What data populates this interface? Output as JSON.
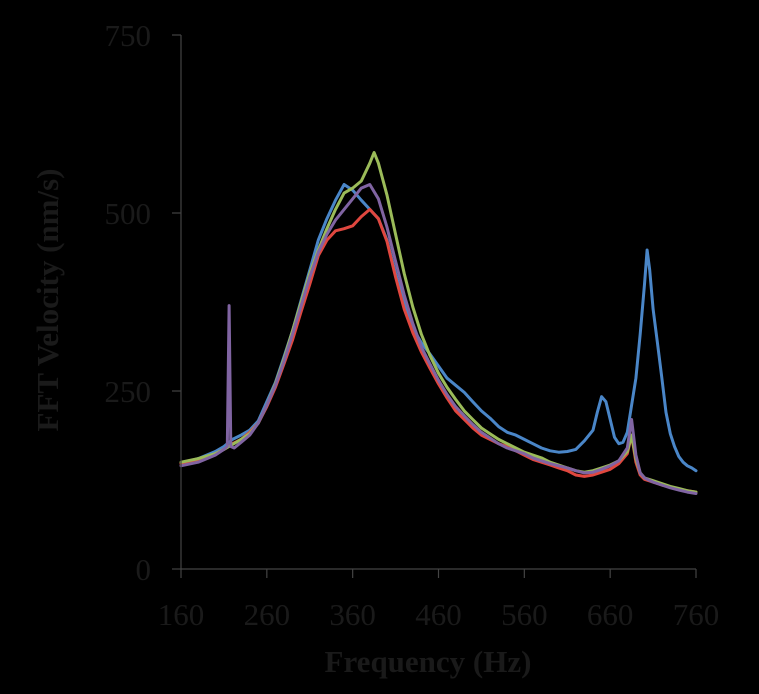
{
  "chart_data": {
    "type": "line",
    "title": "",
    "xlabel": "Frequency (Hz)",
    "ylabel": "FFT Velocity (nm/s)",
    "xlim": [
      160,
      760
    ],
    "ylim": [
      0,
      750
    ],
    "xticks": [
      160,
      260,
      360,
      460,
      560,
      660,
      760
    ],
    "yticks": [
      0,
      250,
      500,
      750
    ],
    "xtick_labels": [
      "160",
      "260",
      "360",
      "460",
      "560",
      "660",
      "760"
    ],
    "ytick_labels": [
      "0",
      "250",
      "500",
      "750"
    ],
    "grid": false,
    "legend": "none",
    "series": [
      {
        "color": "#4a86c8",
        "points": [
          [
            160,
            148
          ],
          [
            180,
            155
          ],
          [
            200,
            165
          ],
          [
            210,
            172
          ],
          [
            220,
            182
          ],
          [
            230,
            188
          ],
          [
            240,
            195
          ],
          [
            250,
            208
          ],
          [
            260,
            235
          ],
          [
            270,
            262
          ],
          [
            280,
            298
          ],
          [
            290,
            335
          ],
          [
            300,
            378
          ],
          [
            310,
            420
          ],
          [
            320,
            462
          ],
          [
            330,
            492
          ],
          [
            340,
            518
          ],
          [
            350,
            540
          ],
          [
            360,
            532
          ],
          [
            370,
            518
          ],
          [
            380,
            505
          ],
          [
            390,
            492
          ],
          [
            400,
            462
          ],
          [
            410,
            415
          ],
          [
            420,
            372
          ],
          [
            430,
            338
          ],
          [
            440,
            318
          ],
          [
            450,
            302
          ],
          [
            460,
            285
          ],
          [
            470,
            268
          ],
          [
            480,
            258
          ],
          [
            490,
            248
          ],
          [
            500,
            235
          ],
          [
            510,
            222
          ],
          [
            520,
            212
          ],
          [
            530,
            200
          ],
          [
            540,
            192
          ],
          [
            550,
            188
          ],
          [
            560,
            182
          ],
          [
            570,
            176
          ],
          [
            580,
            170
          ],
          [
            590,
            166
          ],
          [
            600,
            164
          ],
          [
            610,
            165
          ],
          [
            620,
            168
          ],
          [
            630,
            180
          ],
          [
            640,
            195
          ],
          [
            645,
            220
          ],
          [
            650,
            242
          ],
          [
            655,
            235
          ],
          [
            660,
            210
          ],
          [
            665,
            185
          ],
          [
            670,
            176
          ],
          [
            675,
            178
          ],
          [
            680,
            192
          ],
          [
            685,
            230
          ],
          [
            690,
            268
          ],
          [
            695,
            330
          ],
          [
            700,
            400
          ],
          [
            703,
            448
          ],
          [
            706,
            420
          ],
          [
            710,
            365
          ],
          [
            715,
            318
          ],
          [
            720,
            270
          ],
          [
            725,
            220
          ],
          [
            730,
            190
          ],
          [
            735,
            172
          ],
          [
            740,
            158
          ],
          [
            745,
            150
          ],
          [
            750,
            145
          ],
          [
            755,
            142
          ],
          [
            760,
            138
          ]
        ]
      },
      {
        "color": "#e0473f",
        "points": [
          [
            160,
            148
          ],
          [
            180,
            152
          ],
          [
            200,
            162
          ],
          [
            210,
            168
          ],
          [
            220,
            176
          ],
          [
            230,
            182
          ],
          [
            240,
            192
          ],
          [
            250,
            205
          ],
          [
            260,
            228
          ],
          [
            270,
            255
          ],
          [
            280,
            288
          ],
          [
            290,
            322
          ],
          [
            300,
            362
          ],
          [
            310,
            400
          ],
          [
            320,
            440
          ],
          [
            330,
            462
          ],
          [
            340,
            475
          ],
          [
            350,
            478
          ],
          [
            360,
            482
          ],
          [
            370,
            495
          ],
          [
            380,
            505
          ],
          [
            390,
            492
          ],
          [
            400,
            460
          ],
          [
            410,
            410
          ],
          [
            420,
            365
          ],
          [
            430,
            332
          ],
          [
            440,
            305
          ],
          [
            450,
            282
          ],
          [
            460,
            260
          ],
          [
            470,
            240
          ],
          [
            480,
            222
          ],
          [
            490,
            210
          ],
          [
            500,
            198
          ],
          [
            510,
            188
          ],
          [
            520,
            182
          ],
          [
            530,
            176
          ],
          [
            540,
            172
          ],
          [
            550,
            166
          ],
          [
            560,
            160
          ],
          [
            570,
            154
          ],
          [
            580,
            150
          ],
          [
            590,
            146
          ],
          [
            600,
            142
          ],
          [
            610,
            138
          ],
          [
            620,
            132
          ],
          [
            630,
            130
          ],
          [
            640,
            132
          ],
          [
            650,
            136
          ],
          [
            660,
            140
          ],
          [
            670,
            148
          ],
          [
            680,
            162
          ],
          [
            685,
            188
          ],
          [
            690,
            150
          ],
          [
            695,
            132
          ],
          [
            700,
            126
          ],
          [
            710,
            122
          ],
          [
            720,
            118
          ],
          [
            730,
            115
          ],
          [
            740,
            112
          ],
          [
            750,
            110
          ],
          [
            760,
            108
          ]
        ]
      },
      {
        "color": "#9bbb59",
        "points": [
          [
            160,
            150
          ],
          [
            180,
            155
          ],
          [
            200,
            162
          ],
          [
            210,
            168
          ],
          [
            220,
            175
          ],
          [
            230,
            182
          ],
          [
            240,
            190
          ],
          [
            250,
            205
          ],
          [
            260,
            230
          ],
          [
            270,
            260
          ],
          [
            280,
            295
          ],
          [
            290,
            335
          ],
          [
            300,
            375
          ],
          [
            310,
            415
          ],
          [
            320,
            448
          ],
          [
            330,
            478
          ],
          [
            340,
            505
          ],
          [
            350,
            528
          ],
          [
            360,
            535
          ],
          [
            370,
            545
          ],
          [
            380,
            570
          ],
          [
            385,
            585
          ],
          [
            390,
            570
          ],
          [
            400,
            525
          ],
          [
            410,
            470
          ],
          [
            420,
            415
          ],
          [
            430,
            368
          ],
          [
            440,
            330
          ],
          [
            450,
            300
          ],
          [
            460,
            275
          ],
          [
            470,
            255
          ],
          [
            480,
            238
          ],
          [
            490,
            222
          ],
          [
            500,
            210
          ],
          [
            510,
            198
          ],
          [
            520,
            190
          ],
          [
            530,
            182
          ],
          [
            540,
            176
          ],
          [
            550,
            170
          ],
          [
            560,
            164
          ],
          [
            570,
            160
          ],
          [
            580,
            156
          ],
          [
            590,
            150
          ],
          [
            600,
            146
          ],
          [
            610,
            142
          ],
          [
            620,
            138
          ],
          [
            630,
            136
          ],
          [
            640,
            138
          ],
          [
            650,
            142
          ],
          [
            660,
            146
          ],
          [
            670,
            152
          ],
          [
            680,
            165
          ],
          [
            685,
            188
          ],
          [
            690,
            155
          ],
          [
            695,
            135
          ],
          [
            700,
            128
          ],
          [
            710,
            124
          ],
          [
            720,
            120
          ],
          [
            730,
            116
          ],
          [
            740,
            113
          ],
          [
            750,
            110
          ],
          [
            760,
            108
          ]
        ]
      },
      {
        "color": "#8064a2",
        "points": [
          [
            160,
            145
          ],
          [
            180,
            150
          ],
          [
            200,
            160
          ],
          [
            210,
            168
          ],
          [
            214,
            172
          ],
          [
            216,
            370
          ],
          [
            218,
            172
          ],
          [
            222,
            170
          ],
          [
            230,
            178
          ],
          [
            240,
            188
          ],
          [
            250,
            205
          ],
          [
            260,
            230
          ],
          [
            270,
            258
          ],
          [
            280,
            292
          ],
          [
            290,
            330
          ],
          [
            300,
            370
          ],
          [
            310,
            410
          ],
          [
            320,
            445
          ],
          [
            330,
            470
          ],
          [
            340,
            490
          ],
          [
            350,
            505
          ],
          [
            360,
            520
          ],
          [
            370,
            535
          ],
          [
            380,
            540
          ],
          [
            390,
            520
          ],
          [
            400,
            480
          ],
          [
            410,
            432
          ],
          [
            420,
            385
          ],
          [
            430,
            345
          ],
          [
            440,
            312
          ],
          [
            450,
            288
          ],
          [
            460,
            265
          ],
          [
            470,
            245
          ],
          [
            480,
            228
          ],
          [
            490,
            215
          ],
          [
            500,
            203
          ],
          [
            510,
            192
          ],
          [
            520,
            184
          ],
          [
            530,
            176
          ],
          [
            540,
            170
          ],
          [
            550,
            166
          ],
          [
            560,
            162
          ],
          [
            570,
            156
          ],
          [
            580,
            152
          ],
          [
            590,
            148
          ],
          [
            600,
            145
          ],
          [
            610,
            142
          ],
          [
            620,
            138
          ],
          [
            630,
            135
          ],
          [
            640,
            136
          ],
          [
            650,
            140
          ],
          [
            660,
            145
          ],
          [
            670,
            152
          ],
          [
            680,
            170
          ],
          [
            685,
            210
          ],
          [
            690,
            160
          ],
          [
            695,
            135
          ],
          [
            700,
            128
          ],
          [
            710,
            122
          ],
          [
            720,
            118
          ],
          [
            730,
            114
          ],
          [
            740,
            111
          ],
          [
            750,
            108
          ],
          [
            760,
            106
          ]
        ]
      }
    ]
  }
}
